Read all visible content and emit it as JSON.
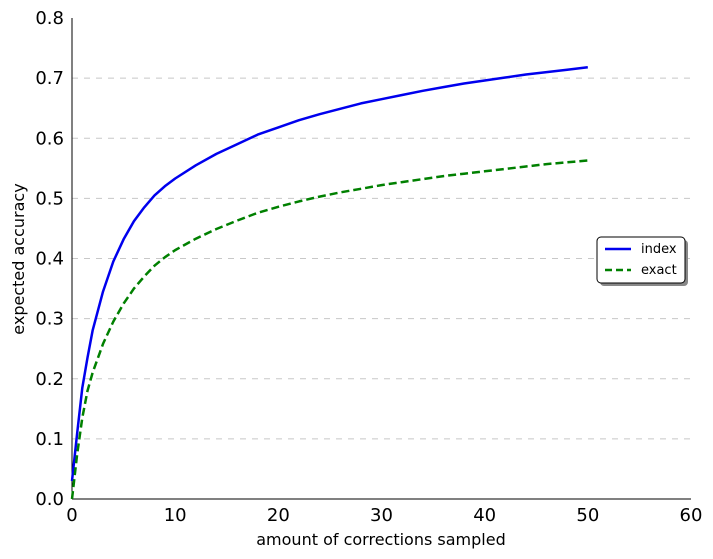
{
  "chart_data": {
    "type": "line",
    "title": "",
    "xlabel": "amount of corrections sampled",
    "ylabel": "expected accuracy",
    "xlim": [
      0,
      60
    ],
    "ylim": [
      0.0,
      0.8
    ],
    "xticks": [
      "0",
      "10",
      "20",
      "30",
      "40",
      "50",
      "60"
    ],
    "yticks": [
      "0.0",
      "0.1",
      "0.2",
      "0.3",
      "0.4",
      "0.5",
      "0.6",
      "0.7",
      "0.8"
    ],
    "grid": "horizontal dashed",
    "legend_position": "center-right",
    "series": [
      {
        "name": "index",
        "color": "#0000ee",
        "style": "solid",
        "x": [
          0,
          0.5,
          1,
          1.5,
          2,
          3,
          4,
          5,
          6,
          7,
          8,
          9,
          10,
          12,
          14,
          16,
          18,
          20,
          22,
          24,
          26,
          28,
          30,
          32,
          34,
          36,
          38,
          40,
          42,
          44,
          46,
          48,
          50
        ],
        "y": [
          0.03,
          0.11,
          0.185,
          0.235,
          0.28,
          0.345,
          0.395,
          0.432,
          0.462,
          0.485,
          0.505,
          0.52,
          0.533,
          0.555,
          0.574,
          0.59,
          0.606,
          0.618,
          0.63,
          0.64,
          0.649,
          0.658,
          0.665,
          0.672,
          0.679,
          0.685,
          0.691,
          0.696,
          0.701,
          0.706,
          0.71,
          0.714,
          0.718
        ]
      },
      {
        "name": "exact",
        "color": "#008000",
        "style": "dashed",
        "x": [
          0,
          0.5,
          1,
          1.5,
          2,
          3,
          4,
          5,
          6,
          7,
          8,
          9,
          10,
          12,
          14,
          16,
          18,
          20,
          22,
          24,
          26,
          28,
          30,
          32,
          34,
          36,
          38,
          40,
          42,
          44,
          46,
          48,
          50
        ],
        "y": [
          0.0,
          0.075,
          0.135,
          0.18,
          0.21,
          0.258,
          0.295,
          0.325,
          0.35,
          0.37,
          0.388,
          0.402,
          0.414,
          0.433,
          0.449,
          0.463,
          0.476,
          0.486,
          0.495,
          0.503,
          0.51,
          0.516,
          0.522,
          0.527,
          0.532,
          0.537,
          0.541,
          0.545,
          0.549,
          0.553,
          0.557,
          0.56,
          0.563
        ]
      }
    ]
  }
}
